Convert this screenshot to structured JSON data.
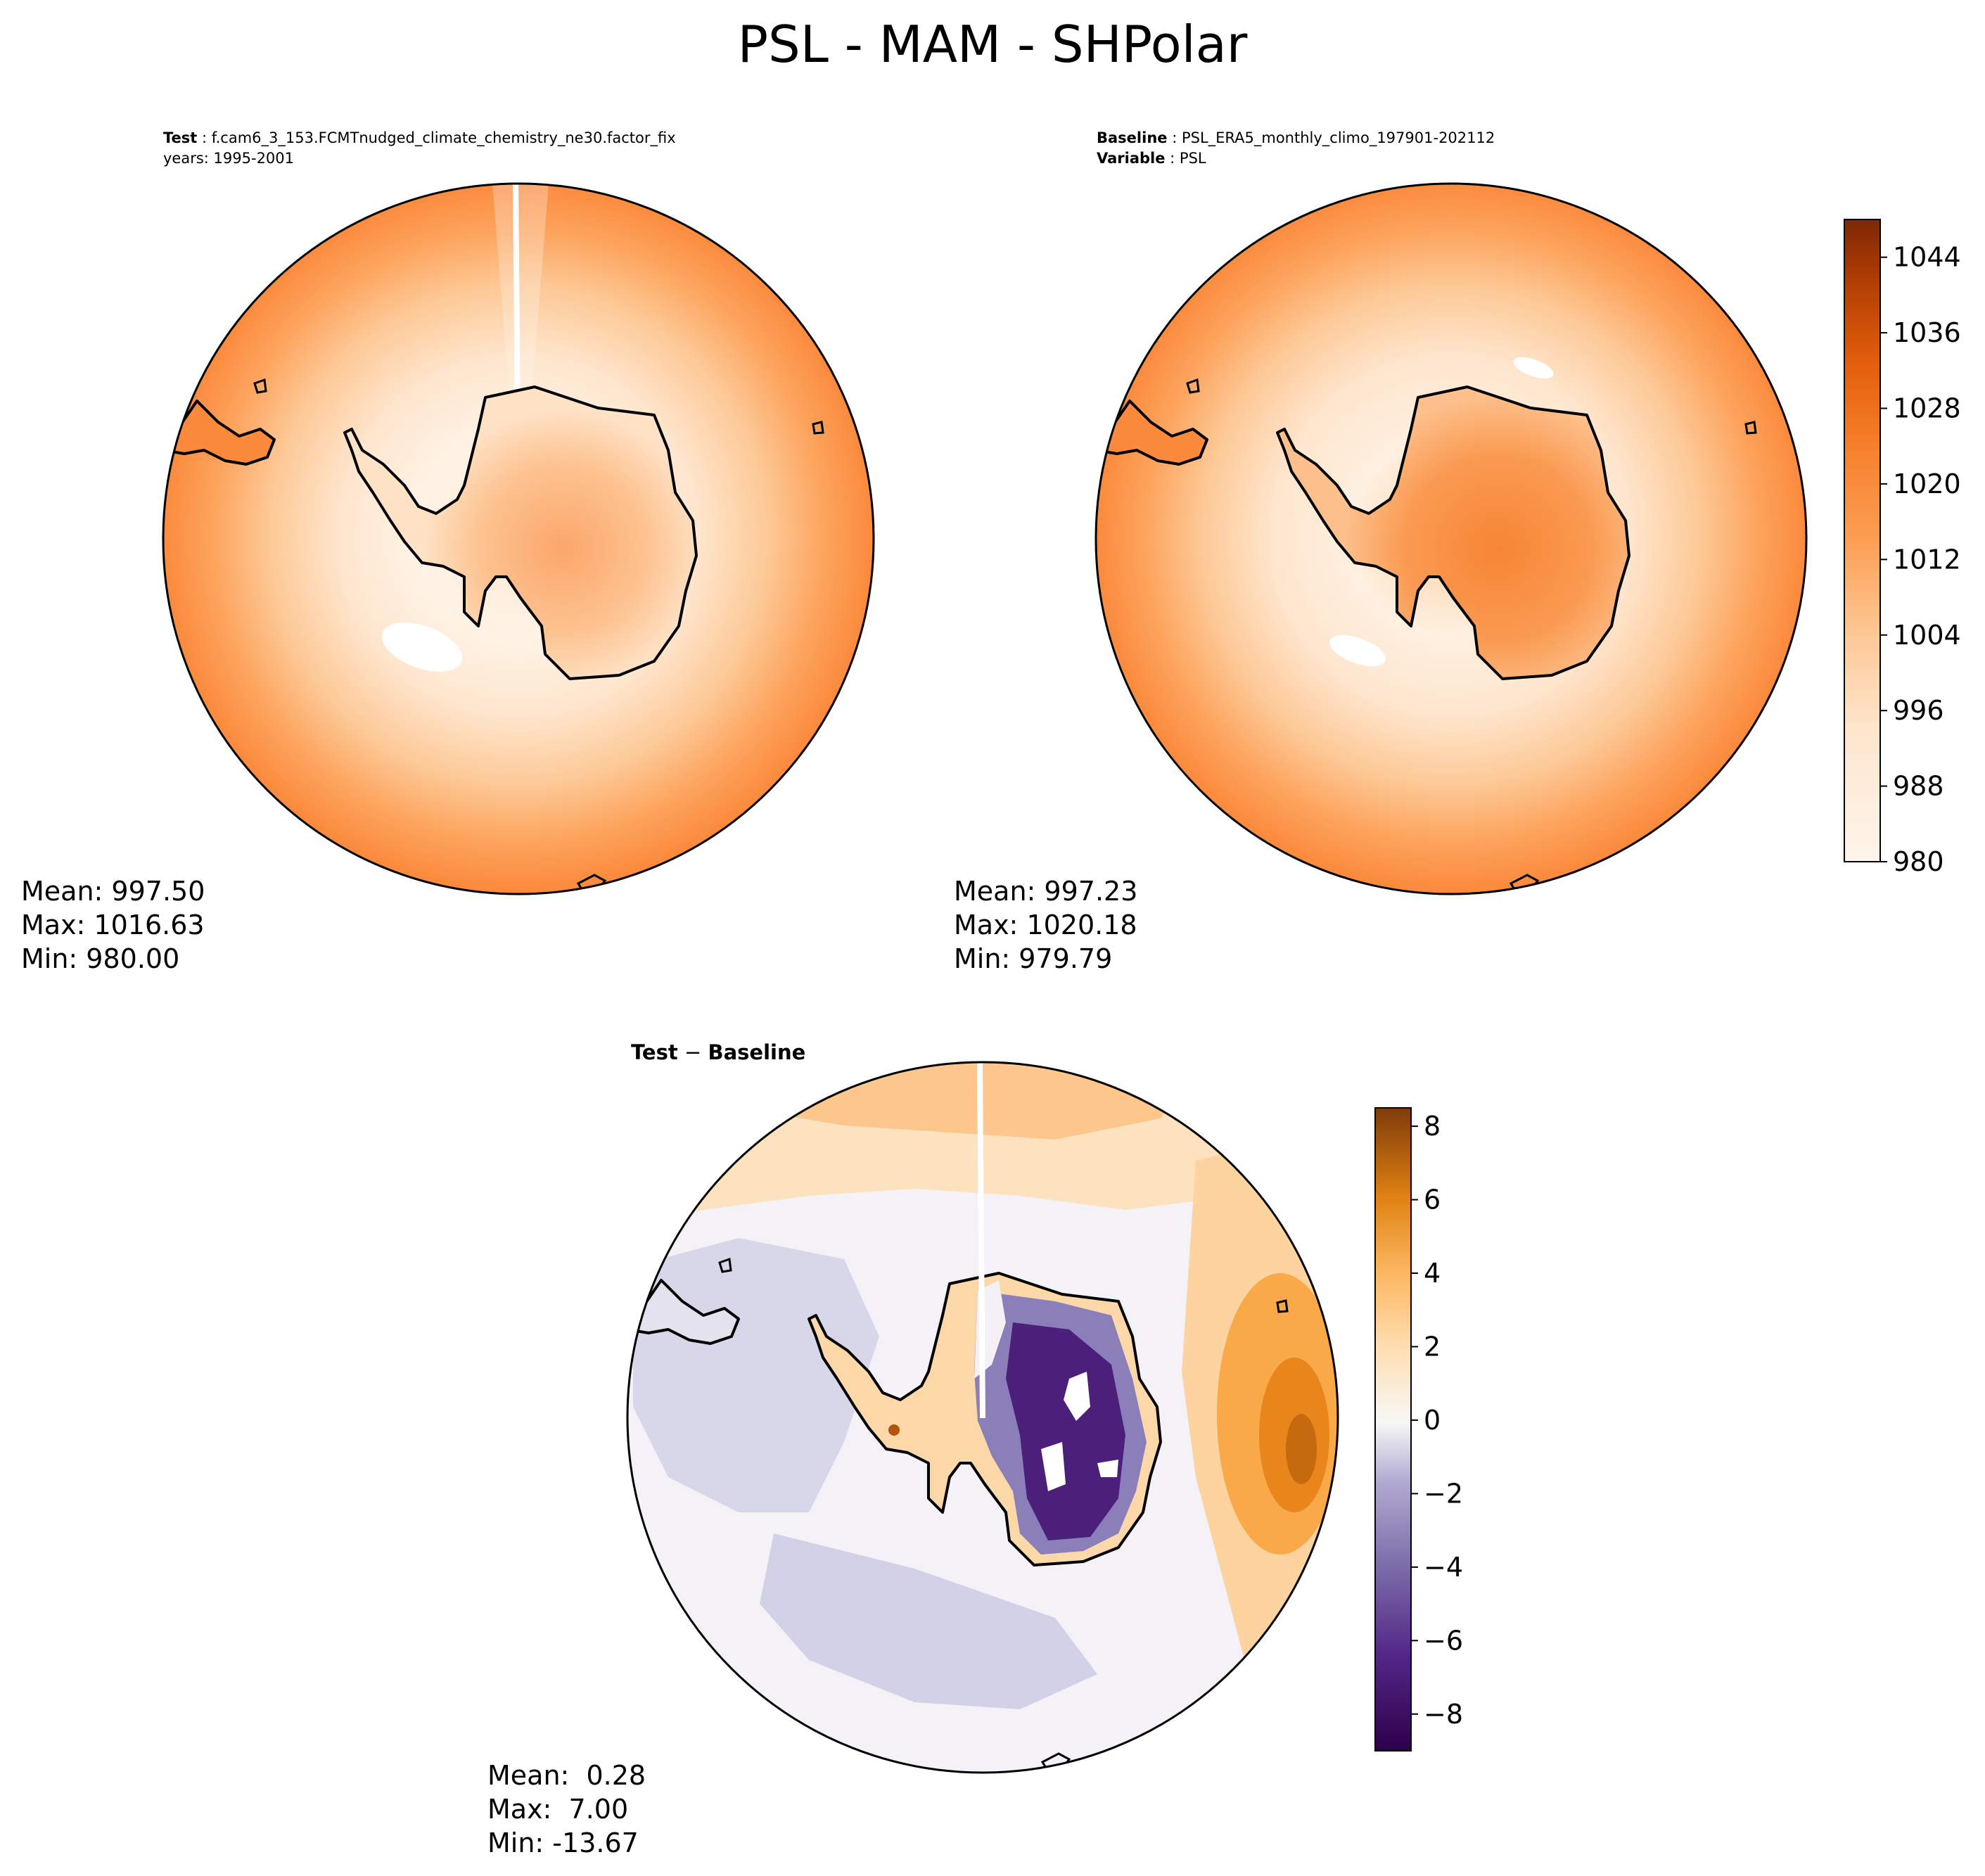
{
  "figure": {
    "title": "PSL - MAM - SHPolar"
  },
  "panels": {
    "test": {
      "header_line1_key": "Test",
      "header_line1_value": "f.cam6_3_153.FCMTnudged_climate_chemistry_ne30.factor_fix",
      "header_line2": "years: 1995-2001",
      "stats": {
        "mean": "Mean: 997.50",
        "max": "Max: 1016.63",
        "min": "Min: 980.00"
      }
    },
    "baseline": {
      "header_line1_key": "Baseline",
      "header_line1_value": "PSL_ERA5_monthly_climo_197901-202112",
      "header_line2_key": "Variable",
      "header_line2_value": "PSL",
      "stats": {
        "mean": "Mean: 997.23",
        "max": "Max: 1020.18",
        "min": "Min: 979.79"
      }
    },
    "difference": {
      "title_a": "Test",
      "title_op": "−",
      "title_b": "Baseline",
      "stats": {
        "mean": "Mean:  0.28",
        "max": "Max:  7.00",
        "min": "Min: -13.67"
      }
    }
  },
  "colorbars": {
    "psl": {
      "ticks": [
        "980",
        "988",
        "996",
        "1004",
        "1012",
        "1020",
        "1028",
        "1036",
        "1044"
      ],
      "range": [
        980,
        1048
      ]
    },
    "diff": {
      "ticks": [
        "−8",
        "−6",
        "−4",
        "−2",
        "0",
        "2",
        "4",
        "6",
        "8"
      ],
      "range": [
        -9,
        8.5
      ]
    }
  },
  "colors": {
    "psl_low": "#fff5eb",
    "psl_mid": "#fd8d3c",
    "psl_high": "#7f2704",
    "diff_neg": "#2d004b",
    "diff_zero": "#f7f7f7",
    "diff_pos": "#7f3b08"
  },
  "chart_data": [
    {
      "type": "heatmap",
      "title": "Test",
      "projection": "south-polar-stereographic",
      "variable": "PSL",
      "stats": {
        "mean": 997.5,
        "max": 1016.63,
        "min": 980.0
      },
      "colorbar_range": [
        980,
        1048
      ]
    },
    {
      "type": "heatmap",
      "title": "Baseline",
      "projection": "south-polar-stereographic",
      "variable": "PSL",
      "stats": {
        "mean": 997.23,
        "max": 1020.18,
        "min": 979.79
      },
      "colorbar_range": [
        980,
        1048
      ]
    },
    {
      "type": "heatmap",
      "title": "Test − Baseline",
      "projection": "south-polar-stereographic",
      "variable": "PSL difference",
      "stats": {
        "mean": 0.28,
        "max": 7.0,
        "min": -13.67
      },
      "colorbar_range": [
        -9,
        8.5
      ]
    }
  ]
}
